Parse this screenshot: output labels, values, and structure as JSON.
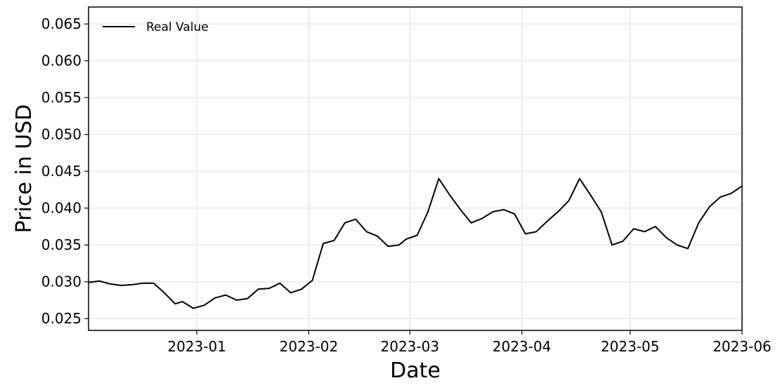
{
  "chart_data": {
    "type": "line",
    "title": "",
    "xlabel": "Date",
    "ylabel": "Price in USD",
    "x_range": [
      "2022-12-02",
      "2023-06-01"
    ],
    "ylim": [
      0.0234,
      0.0673
    ],
    "x_ticks": [
      "2023-01-01",
      "2023-02-01",
      "2023-03-01",
      "2023-04-01",
      "2023-05-01",
      "2023-06-01"
    ],
    "x_tick_labels": [
      "2023-01",
      "2023-02",
      "2023-03",
      "2023-04",
      "2023-05",
      "2023-06"
    ],
    "y_ticks": [
      0.025,
      0.03,
      0.035,
      0.04,
      0.045,
      0.05,
      0.055,
      0.06,
      0.065
    ],
    "y_tick_labels": [
      "0.025",
      "0.030",
      "0.035",
      "0.040",
      "0.045",
      "0.050",
      "0.055",
      "0.060",
      "0.065"
    ],
    "grid": true,
    "legend_position": "top-left",
    "series": [
      {
        "name": "Real Value",
        "color": "#000000",
        "points": [
          [
            "2022-12-02",
            0.0299
          ],
          [
            "2022-12-05",
            0.0301
          ],
          [
            "2022-12-08",
            0.0297
          ],
          [
            "2022-12-11",
            0.0295
          ],
          [
            "2022-12-14",
            0.0296
          ],
          [
            "2022-12-17",
            0.0298
          ],
          [
            "2022-12-20",
            0.0298
          ],
          [
            "2022-12-23",
            0.0285
          ],
          [
            "2022-12-26",
            0.027
          ],
          [
            "2022-12-28",
            0.0273
          ],
          [
            "2022-12-31",
            0.0264
          ],
          [
            "2023-01-03",
            0.0268
          ],
          [
            "2023-01-06",
            0.0278
          ],
          [
            "2023-01-09",
            0.0282
          ],
          [
            "2023-01-12",
            0.0275
          ],
          [
            "2023-01-15",
            0.0277
          ],
          [
            "2023-01-18",
            0.029
          ],
          [
            "2023-01-21",
            0.0291
          ],
          [
            "2023-01-24",
            0.0298
          ],
          [
            "2023-01-27",
            0.0285
          ],
          [
            "2023-01-30",
            0.029
          ],
          [
            "2023-02-02",
            0.0302
          ],
          [
            "2023-02-05",
            0.0352
          ],
          [
            "2023-02-08",
            0.0356
          ],
          [
            "2023-02-11",
            0.038
          ],
          [
            "2023-02-14",
            0.0385
          ],
          [
            "2023-02-17",
            0.0368
          ],
          [
            "2023-02-20",
            0.0362
          ],
          [
            "2023-02-23",
            0.0348
          ],
          [
            "2023-02-26",
            0.035
          ],
          [
            "2023-02-28",
            0.0358
          ],
          [
            "2023-03-03",
            0.0363
          ],
          [
            "2023-03-06",
            0.0395
          ],
          [
            "2023-03-09",
            0.044
          ],
          [
            "2023-03-12",
            0.0418
          ],
          [
            "2023-03-15",
            0.0398
          ],
          [
            "2023-03-18",
            0.038
          ],
          [
            "2023-03-21",
            0.0386
          ],
          [
            "2023-03-24",
            0.0395
          ],
          [
            "2023-03-27",
            0.0398
          ],
          [
            "2023-03-30",
            0.0392
          ],
          [
            "2023-04-02",
            0.0365
          ],
          [
            "2023-04-05",
            0.0368
          ],
          [
            "2023-04-08",
            0.0382
          ],
          [
            "2023-04-11",
            0.0395
          ],
          [
            "2023-04-14",
            0.041
          ],
          [
            "2023-04-17",
            0.044
          ],
          [
            "2023-04-20",
            0.0418
          ],
          [
            "2023-04-23",
            0.0395
          ],
          [
            "2023-04-26",
            0.035
          ],
          [
            "2023-04-29",
            0.0355
          ],
          [
            "2023-05-02",
            0.0372
          ],
          [
            "2023-05-05",
            0.0368
          ],
          [
            "2023-05-08",
            0.0375
          ],
          [
            "2023-05-11",
            0.036
          ],
          [
            "2023-05-14",
            0.035
          ],
          [
            "2023-05-17",
            0.0345
          ],
          [
            "2023-05-20",
            0.038
          ],
          [
            "2023-05-23",
            0.0402
          ],
          [
            "2023-05-26",
            0.0415
          ],
          [
            "2023-05-29",
            0.042
          ],
          [
            "2023-06-01",
            0.043
          ]
        ]
      }
    ]
  }
}
